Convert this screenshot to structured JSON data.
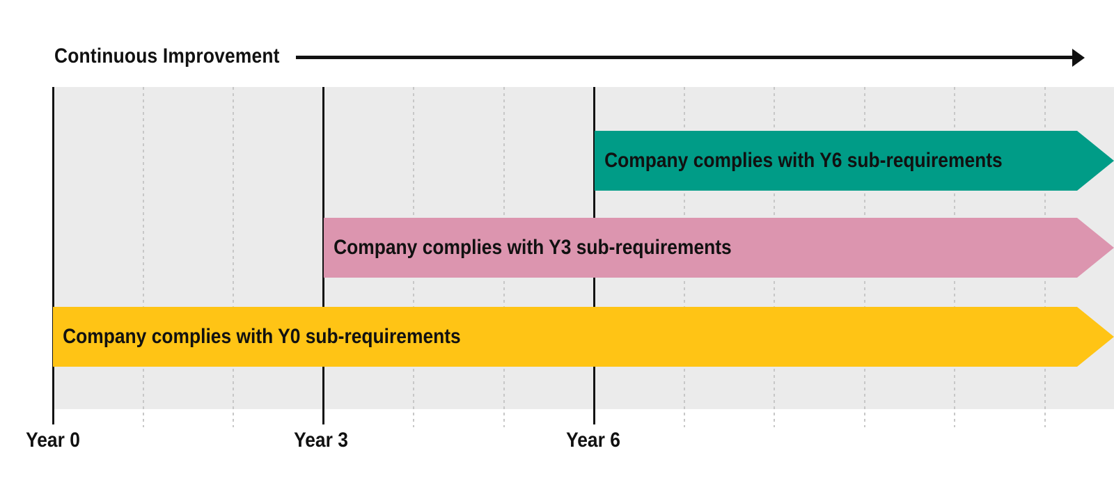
{
  "header": {
    "title": "Continuous Improvement",
    "arrow_icon": "right-arrow-icon"
  },
  "axis": {
    "ticks": [
      {
        "label": "Year 0"
      },
      {
        "label": "Year 3"
      },
      {
        "label": "Year 6"
      }
    ],
    "gridlines": "dotted vertical line at each year, solid vertical line at Year 0, Year 3, Year 6"
  },
  "bars": [
    {
      "id": "y6",
      "label": "Company complies with Y6 sub-requirements",
      "start_tick": "Year 6",
      "color": "#009C87"
    },
    {
      "id": "y3",
      "label": "Company complies with Y3 sub-requirements",
      "start_tick": "Year 3",
      "color": "#DC95AF"
    },
    {
      "id": "y0",
      "label": "Company complies with Y0 sub-requirements",
      "start_tick": "Year 0",
      "color": "#FFC415"
    }
  ],
  "colors": {
    "plot_background": "#EBEBEB",
    "gridline_dotted": "#C7C7C7",
    "axis_line": "#131313",
    "text": "#111111",
    "bar_y0": "#FFC415",
    "bar_y3": "#DC95AF",
    "bar_y6": "#009C87"
  },
  "chart_data": {
    "type": "bar",
    "subtype": "timeline (Gantt-style, arrows run off right edge)",
    "title": "Continuous Improvement",
    "x_tick_labels": [
      "Year 0",
      "Year 3",
      "Year 6"
    ],
    "categories": [
      "Company complies with Y6 sub-requirements",
      "Company complies with Y3 sub-requirements",
      "Company complies with Y0 sub-requirements"
    ],
    "series": [
      {
        "name": "start_year",
        "values": [
          6,
          3,
          0
        ]
      },
      {
        "name": "end_year",
        "values": [
          "ongoing",
          "ongoing",
          "ongoing"
        ]
      }
    ],
    "grid": "dotted yearly vertical gridlines on gray band",
    "legend": "none"
  }
}
